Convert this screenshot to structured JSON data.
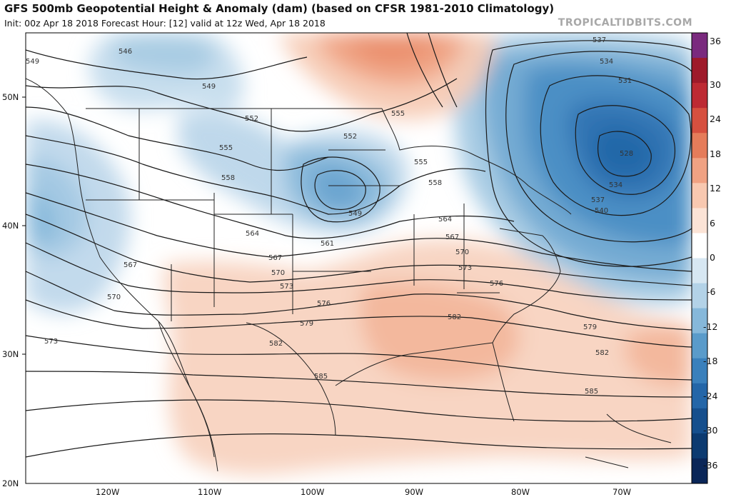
{
  "header": {
    "title": "GFS 500mb Geopotential Height & Anomaly (dam) (based on CFSR 1981-2010 Climatology)",
    "subtitle": "Init: 00z Apr 18 2018   Forecast Hour: [12]   valid at 12z Wed, Apr 18 2018",
    "brand": "TROPICALTIDBITS.COM"
  },
  "axes": {
    "lat_labels": [
      "50N",
      "40N",
      "30N",
      "20N"
    ],
    "lon_labels": [
      "120W",
      "110W",
      "100W",
      "90W",
      "80W",
      "70W"
    ]
  },
  "colorbar": {
    "labels": [
      "36",
      "30",
      "24",
      "18",
      "12",
      "6",
      "0",
      "-6",
      "-12",
      "-18",
      "-24",
      "-30",
      "-36"
    ],
    "colors": [
      "#7a2a7e",
      "#9e1a2a",
      "#bd2a33",
      "#d6503f",
      "#e57c5a",
      "#f0a283",
      "#f8c8b0",
      "#fbe3d6",
      "#ffffff",
      "#d7e7f2",
      "#b3d2e7",
      "#86b8da",
      "#5a9bca",
      "#3a80bc",
      "#2466a8",
      "#164f8d",
      "#0c3a70",
      "#0a2658"
    ]
  },
  "contour_labels": [
    "549",
    "546",
    "549",
    "552",
    "552",
    "555",
    "555",
    "555",
    "558",
    "558",
    "564",
    "561",
    "549",
    "564",
    "567",
    "567",
    "570",
    "570",
    "573",
    "573",
    "576",
    "576",
    "579",
    "579",
    "582",
    "582",
    "582",
    "585",
    "585",
    "573",
    "567",
    "570",
    "537",
    "534",
    "531",
    "528",
    "534",
    "537",
    "540"
  ],
  "colors": {
    "contour": "#1a1a1a",
    "border": "#222222"
  }
}
